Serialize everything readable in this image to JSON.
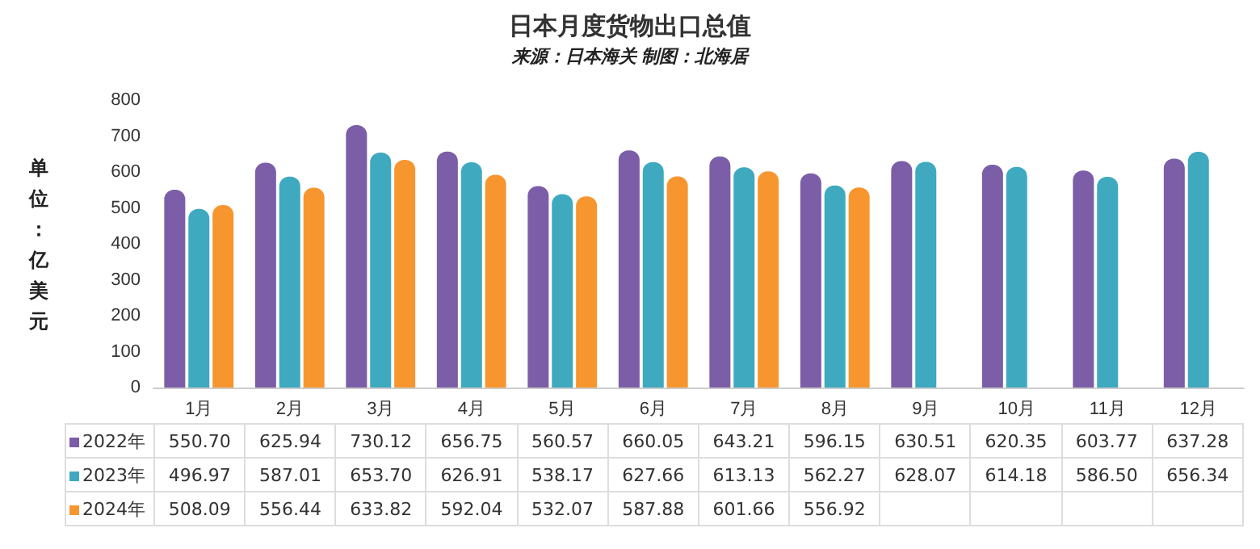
{
  "chart_data": {
    "type": "bar",
    "title": "日本月度货物出口总值",
    "subtitle": "来源：日本海关 制图：北海居",
    "ylabel": "单位：亿美元",
    "categories": [
      "1月",
      "2月",
      "3月",
      "4月",
      "5月",
      "6月",
      "7月",
      "8月",
      "9月",
      "10月",
      "11月",
      "12月"
    ],
    "series": [
      {
        "name": "2022年",
        "color": "#7b5ea7",
        "values": [
          550.7,
          625.94,
          730.12,
          656.75,
          560.57,
          660.05,
          643.21,
          596.15,
          630.51,
          620.35,
          603.77,
          637.28
        ],
        "value_labels": [
          "550.70",
          "625.94",
          "730.12",
          "656.75",
          "560.57",
          "660.05",
          "643.21",
          "596.15",
          "630.51",
          "620.35",
          "603.77",
          "637.28"
        ]
      },
      {
        "name": "2023年",
        "color": "#3fa9c0",
        "values": [
          496.97,
          587.01,
          653.7,
          626.91,
          538.17,
          627.66,
          613.13,
          562.27,
          628.07,
          614.18,
          586.5,
          656.34
        ],
        "value_labels": [
          "496.97",
          "587.01",
          "653.70",
          "626.91",
          "538.17",
          "627.66",
          "613.13",
          "562.27",
          "628.07",
          "614.18",
          "586.50",
          "656.34"
        ]
      },
      {
        "name": "2024年",
        "color": "#f7962f",
        "values": [
          508.09,
          556.44,
          633.82,
          592.04,
          532.07,
          587.88,
          601.66,
          556.92,
          null,
          null,
          null,
          null
        ],
        "value_labels": [
          "508.09",
          "556.44",
          "633.82",
          "592.04",
          "532.07",
          "587.88",
          "601.66",
          "556.92",
          null,
          null,
          null,
          null
        ]
      }
    ],
    "ylim": [
      0,
      800
    ],
    "yticks": [
      0,
      100,
      200,
      300,
      400,
      500,
      600,
      700,
      800
    ],
    "grid": false,
    "legend": "bottom"
  }
}
